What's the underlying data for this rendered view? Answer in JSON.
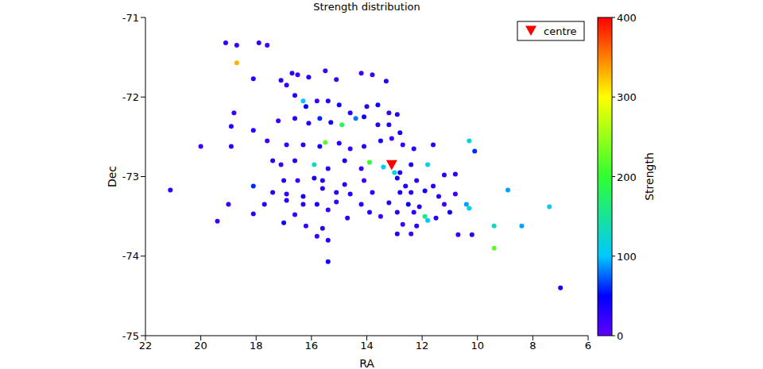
{
  "chart_data": {
    "type": "scatter",
    "title": "Strength distribution",
    "x_label": "RA",
    "y_label": "Dec",
    "xlim": [
      22,
      6
    ],
    "xticks": [
      22,
      20,
      18,
      16,
      14,
      12,
      10,
      8,
      6
    ],
    "ylim": [
      -75,
      -71
    ],
    "yticks": [
      -75,
      -74,
      -73,
      -72,
      -71
    ],
    "legend": "upper right",
    "centre": {
      "name": "centre",
      "x": 13.1,
      "y": -72.85,
      "color": "#ff0000",
      "marker": "triangle-down"
    },
    "colorbar": {
      "label": "Strength",
      "range": [
        0,
        400
      ],
      "ticks": [
        0,
        100,
        200,
        300,
        400
      ]
    },
    "x": [
      19.1,
      18.7,
      17.9,
      17.6,
      18.7,
      18.1,
      17.1,
      16.9,
      16.7,
      16.5,
      16.1,
      15.5,
      15.1,
      14.2,
      13.8,
      13.3,
      16.6,
      16.3,
      16.2,
      15.8,
      15.4,
      15.0,
      14.6,
      14.0,
      13.6,
      13.2,
      12.9,
      18.8,
      18.9,
      18.1,
      17.2,
      16.6,
      16.1,
      15.7,
      15.3,
      14.9,
      14.4,
      14.1,
      13.6,
      13.2,
      12.8,
      20.0,
      18.9,
      17.6,
      16.9,
      16.3,
      15.7,
      15.5,
      15.0,
      14.6,
      14.1,
      13.5,
      13.1,
      12.7,
      12.3,
      11.6,
      10.3,
      10.1,
      17.4,
      17.1,
      16.6,
      15.9,
      15.4,
      14.8,
      14.2,
      13.9,
      13.4,
      12.8,
      12.4,
      11.8,
      11.2,
      10.8,
      17.0,
      16.5,
      15.9,
      15.6,
      14.8,
      14.1,
      13.0,
      12.9,
      12.6,
      12.2,
      11.6,
      18.1,
      21.1,
      17.4,
      16.9,
      16.3,
      15.6,
      15.1,
      14.6,
      13.8,
      12.8,
      12.4,
      11.9,
      11.4,
      10.8,
      16.9,
      16.3,
      15.8,
      15.1,
      14.2,
      13.2,
      12.5,
      12.1,
      11.2,
      10.4,
      10.3,
      8.9,
      7.4,
      19.0,
      17.7,
      16.6,
      15.4,
      14.7,
      13.9,
      13.5,
      12.9,
      12.3,
      11.9,
      11.5,
      11.0,
      18.1,
      19.4,
      17.0,
      16.2,
      15.6,
      12.7,
      12.2,
      11.8,
      9.4,
      8.4,
      12.9,
      12.4,
      15.8,
      15.4,
      10.7,
      10.2,
      9.4,
      15.4,
      7.0
    ],
    "y": [
      -71.32,
      -71.35,
      -71.32,
      -71.35,
      -71.57,
      -71.77,
      -71.79,
      -71.85,
      -71.7,
      -71.72,
      -71.75,
      -71.67,
      -71.78,
      -71.7,
      -71.72,
      -71.8,
      -71.98,
      -72.05,
      -72.12,
      -72.05,
      -72.05,
      -72.1,
      -72.2,
      -72.12,
      -72.1,
      -72.2,
      -72.22,
      -72.2,
      -72.37,
      -72.42,
      -72.3,
      -72.27,
      -72.33,
      -72.27,
      -72.32,
      -72.35,
      -72.27,
      -72.25,
      -72.35,
      -72.35,
      -72.45,
      -72.62,
      -72.62,
      -72.55,
      -72.6,
      -72.6,
      -72.62,
      -72.57,
      -72.58,
      -72.65,
      -72.62,
      -72.55,
      -72.52,
      -72.6,
      -72.65,
      -72.6,
      -72.55,
      -72.68,
      -72.8,
      -72.85,
      -72.8,
      -72.85,
      -72.9,
      -72.8,
      -72.9,
      -72.82,
      -72.88,
      -72.95,
      -72.85,
      -72.85,
      -72.98,
      -72.97,
      -73.05,
      -73.05,
      -73.02,
      -73.05,
      -73.1,
      -73.05,
      -72.95,
      -73.02,
      -73.12,
      -73.05,
      -73.12,
      -73.12,
      -73.17,
      -73.2,
      -73.22,
      -73.25,
      -73.15,
      -73.2,
      -73.22,
      -73.2,
      -73.2,
      -73.2,
      -73.18,
      -73.25,
      -73.22,
      -73.3,
      -73.35,
      -73.35,
      -73.32,
      -73.35,
      -73.33,
      -73.35,
      -73.38,
      -73.35,
      -73.35,
      -73.4,
      -73.17,
      -73.38,
      -73.35,
      -73.35,
      -73.48,
      -73.42,
      -73.52,
      -73.45,
      -73.5,
      -73.45,
      -73.45,
      -73.5,
      -73.52,
      -73.45,
      -73.47,
      -73.56,
      -73.58,
      -73.62,
      -73.65,
      -73.6,
      -73.62,
      -73.55,
      -73.62,
      -73.62,
      -73.72,
      -73.72,
      -73.75,
      -73.8,
      -73.73,
      -73.73,
      -73.9,
      -74.07,
      -74.4
    ],
    "strength": [
      20,
      20,
      20,
      20,
      330,
      30,
      30,
      20,
      30,
      20,
      30,
      20,
      20,
      20,
      20,
      30,
      30,
      100,
      50,
      20,
      30,
      40,
      30,
      30,
      40,
      20,
      30,
      20,
      30,
      30,
      20,
      30,
      30,
      60,
      40,
      180,
      80,
      40,
      30,
      30,
      40,
      20,
      30,
      20,
      20,
      30,
      40,
      220,
      30,
      20,
      30,
      40,
      20,
      20,
      30,
      30,
      120,
      60,
      30,
      20,
      30,
      130,
      30,
      40,
      20,
      200,
      100,
      30,
      40,
      110,
      30,
      30,
      30,
      20,
      40,
      30,
      30,
      20,
      120,
      40,
      30,
      30,
      30,
      60,
      30,
      30,
      20,
      40,
      30,
      30,
      30,
      30,
      40,
      30,
      40,
      30,
      20,
      30,
      30,
      40,
      20,
      30,
      30,
      50,
      30,
      20,
      90,
      110,
      90,
      110,
      20,
      30,
      20,
      20,
      30,
      30,
      20,
      30,
      30,
      160,
      30,
      40,
      30,
      20,
      40,
      20,
      30,
      20,
      30,
      100,
      130,
      90,
      30,
      20,
      20,
      30,
      20,
      30,
      220,
      40,
      40
    ]
  }
}
